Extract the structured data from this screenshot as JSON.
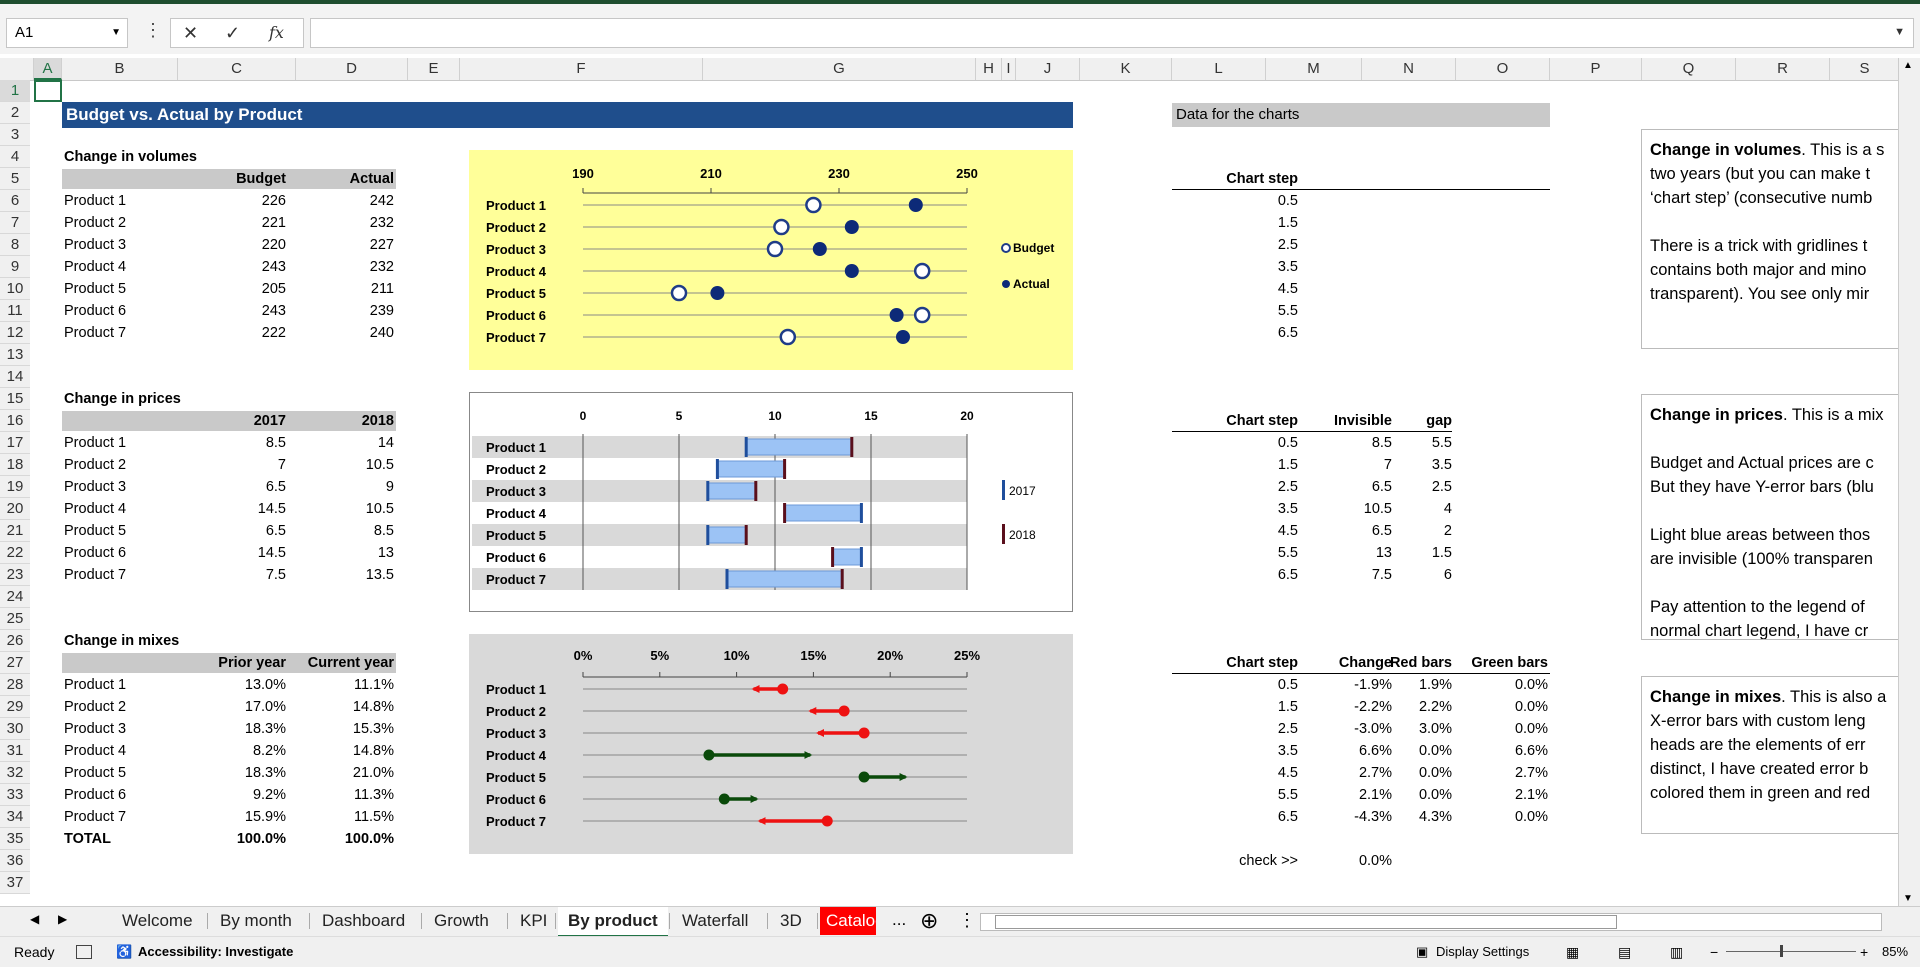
{
  "name_box": "A1",
  "formula_value": "",
  "columns": [
    "A",
    "B",
    "C",
    "D",
    "E",
    "F",
    "G",
    "H",
    "I",
    "J",
    "K",
    "L",
    "M",
    "N",
    "O",
    "P",
    "Q",
    "R",
    "S"
  ],
  "rows": [
    "1",
    "2",
    "3",
    "4",
    "5",
    "6",
    "7",
    "8",
    "9",
    "10",
    "11",
    "12",
    "13",
    "14",
    "15",
    "16",
    "17",
    "18",
    "19",
    "20",
    "21",
    "22",
    "23",
    "24",
    "25",
    "26",
    "27",
    "28",
    "29",
    "30",
    "31",
    "32",
    "33",
    "34",
    "35",
    "36",
    "37"
  ],
  "title": "Budget vs. Actual by Product",
  "data_band": "Data for the charts",
  "volumes": {
    "label": "Change in volumes",
    "headers": [
      "Budget",
      "Actual"
    ],
    "rows": [
      [
        "Product 1",
        226,
        242
      ],
      [
        "Product 2",
        221,
        232
      ],
      [
        "Product 3",
        220,
        227
      ],
      [
        "Product 4",
        243,
        232
      ],
      [
        "Product 5",
        205,
        211
      ],
      [
        "Product 6",
        243,
        239
      ],
      [
        "Product 7",
        222,
        240
      ]
    ]
  },
  "prices": {
    "label": "Change in prices",
    "headers": [
      "2017",
      "2018"
    ],
    "rows": [
      [
        "Product 1",
        "8.5",
        "14"
      ],
      [
        "Product 2",
        "7",
        "10.5"
      ],
      [
        "Product 3",
        "6.5",
        "9"
      ],
      [
        "Product 4",
        "14.5",
        "10.5"
      ],
      [
        "Product 5",
        "6.5",
        "8.5"
      ],
      [
        "Product 6",
        "14.5",
        "13"
      ],
      [
        "Product 7",
        "7.5",
        "13.5"
      ]
    ]
  },
  "mixes": {
    "label": "Change in mixes",
    "headers": [
      "Prior year",
      "Current year"
    ],
    "rows": [
      [
        "Product 1",
        "13.0%",
        "11.1%"
      ],
      [
        "Product 2",
        "17.0%",
        "14.8%"
      ],
      [
        "Product 3",
        "18.3%",
        "15.3%"
      ],
      [
        "Product 4",
        "8.2%",
        "14.8%"
      ],
      [
        "Product 5",
        "18.3%",
        "21.0%"
      ],
      [
        "Product 6",
        "9.2%",
        "11.3%"
      ],
      [
        "Product 7",
        "15.9%",
        "11.5%"
      ]
    ],
    "total": [
      "TOTAL",
      "100.0%",
      "100.0%"
    ]
  },
  "data1": {
    "headers": [
      "Chart step"
    ],
    "rows": [
      [
        "0.5"
      ],
      [
        "1.5"
      ],
      [
        "2.5"
      ],
      [
        "3.5"
      ],
      [
        "4.5"
      ],
      [
        "5.5"
      ],
      [
        "6.5"
      ]
    ]
  },
  "data2": {
    "headers": [
      "Chart step",
      "Invisible",
      "gap"
    ],
    "rows": [
      [
        "0.5",
        "8.5",
        "5.5"
      ],
      [
        "1.5",
        "7",
        "3.5"
      ],
      [
        "2.5",
        "6.5",
        "2.5"
      ],
      [
        "3.5",
        "10.5",
        "4"
      ],
      [
        "4.5",
        "6.5",
        "2"
      ],
      [
        "5.5",
        "13",
        "1.5"
      ],
      [
        "6.5",
        "7.5",
        "6"
      ]
    ]
  },
  "data3": {
    "headers": [
      "Chart step",
      "Change",
      "Red bars",
      "Green bars"
    ],
    "rows": [
      [
        "0.5",
        "-1.9%",
        "1.9%",
        "0.0%"
      ],
      [
        "1.5",
        "-2.2%",
        "2.2%",
        "0.0%"
      ],
      [
        "2.5",
        "-3.0%",
        "3.0%",
        "0.0%"
      ],
      [
        "3.5",
        "6.6%",
        "0.0%",
        "6.6%"
      ],
      [
        "4.5",
        "2.7%",
        "0.0%",
        "2.7%"
      ],
      [
        "5.5",
        "2.1%",
        "0.0%",
        "2.1%"
      ],
      [
        "6.5",
        "-4.3%",
        "4.3%",
        "0.0%"
      ]
    ]
  },
  "check": {
    "label": "check >>",
    "value": "0.0%"
  },
  "textboxes": [
    {
      "bold": "Change in volumes",
      "lines": [
        ". This is a s",
        "two years (but you can make t",
        "‘chart step’ (consecutive numb",
        "",
        "There is a trick with gridlines t",
        "contains both major and mino",
        "transparent). You see only mir"
      ]
    },
    {
      "bold": "Change in prices",
      "lines": [
        ". This is a mix",
        "",
        "Budget and Actual prices are c",
        "But they have Y-error bars (blu",
        "",
        "Light blue areas between thos",
        "are invisible (100% transparen",
        "",
        "Pay attention to the legend of",
        "normal chart legend, I have cr"
      ]
    },
    {
      "bold": "Change in mixes",
      "lines": [
        ". This is also a",
        "X-error bars with custom leng",
        "heads are the elements of err",
        "distinct, I have created error b",
        "colored them in green and red"
      ]
    }
  ],
  "chart_data": [
    {
      "type": "scatter",
      "categories": [
        "Product 1",
        "Product 2",
        "Product 3",
        "Product 4",
        "Product 5",
        "Product 6",
        "Product 7"
      ],
      "series": [
        {
          "name": "Budget",
          "values": [
            226,
            221,
            220,
            243,
            205,
            243,
            222
          ]
        },
        {
          "name": "Actual",
          "values": [
            242,
            232,
            227,
            232,
            211,
            239,
            240
          ]
        }
      ],
      "xlim": [
        190,
        250
      ],
      "ticks": [
        "190",
        "210",
        "230",
        "250"
      ],
      "legend": "right"
    },
    {
      "type": "bar",
      "categories": [
        "Product 1",
        "Product 2",
        "Product 3",
        "Product 4",
        "Product 5",
        "Product 6",
        "Product 7"
      ],
      "series": [
        {
          "name": "2017",
          "values": [
            8.5,
            7,
            6.5,
            14.5,
            6.5,
            14.5,
            7.5
          ]
        },
        {
          "name": "2018",
          "values": [
            14,
            10.5,
            9,
            10.5,
            8.5,
            13,
            13.5
          ]
        }
      ],
      "xlim": [
        0,
        20
      ],
      "ticks": [
        "0",
        "5",
        "10",
        "15",
        "20"
      ],
      "legend": "right"
    },
    {
      "type": "scatter",
      "categories": [
        "Product 1",
        "Product 2",
        "Product 3",
        "Product 4",
        "Product 5",
        "Product 6",
        "Product 7"
      ],
      "series": [
        {
          "name": "Prior year",
          "values": [
            13.0,
            17.0,
            18.3,
            8.2,
            18.3,
            9.2,
            15.9
          ]
        },
        {
          "name": "Current year",
          "values": [
            11.1,
            14.8,
            15.3,
            14.8,
            21.0,
            11.3,
            11.5
          ]
        }
      ],
      "xlim": [
        0,
        25
      ],
      "ticks": [
        "0%",
        "5%",
        "10%",
        "15%",
        "20%",
        "25%"
      ]
    }
  ],
  "sheet_tabs": [
    "Welcome",
    "By month",
    "Dashboard",
    "Growth",
    "KPI",
    "By product",
    "Waterfall",
    "3D",
    "Catalog"
  ],
  "active_tab": "By product",
  "tab_more": "...",
  "status": {
    "ready": "Ready",
    "accessibility": "Accessibility: Investigate",
    "display_settings": "Display Settings",
    "zoom": "85%"
  },
  "icons": {
    "cancel": "✕",
    "enter": "✓",
    "fx": "fx",
    "add_sheet": "⊕"
  }
}
